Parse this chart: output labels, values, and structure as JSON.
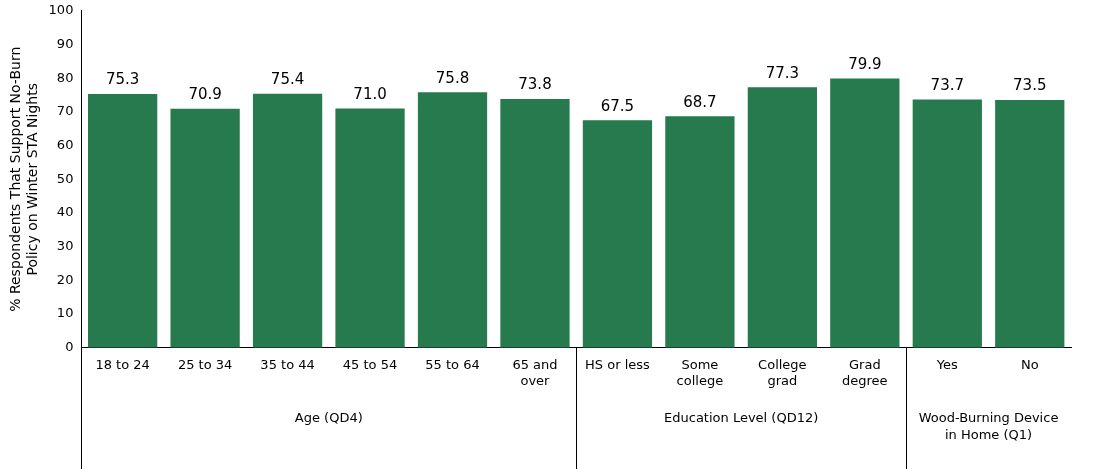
{
  "chart_data": {
    "type": "bar",
    "ylabel": "% Respondents That Support No-Burn Policy on Winter STA Nights",
    "categories": [
      "18 to 24",
      "25 to 34",
      "35 to 44",
      "45 to 54",
      "55 to 64",
      "65 and over",
      "HS or less",
      "Some college",
      "College grad",
      "Grad degree",
      "Yes",
      "No"
    ],
    "values": [
      75.3,
      70.9,
      75.4,
      71.0,
      75.8,
      73.8,
      67.5,
      68.7,
      77.3,
      79.9,
      73.7,
      73.5
    ],
    "value_labels": [
      "75.3",
      "70.9",
      "75.4",
      "71.0",
      "75.8",
      "73.8",
      "67.5",
      "68.7",
      "77.3",
      "79.9",
      "73.7",
      "73.5"
    ],
    "color": "#267a4e",
    "ylim": [
      0,
      100
    ],
    "yticks": [
      0,
      10,
      20,
      30,
      40,
      50,
      60,
      70,
      80,
      90,
      100
    ],
    "grid": false,
    "legend": false,
    "annotations": [
      "Age (QD4)",
      "Education Level (QD12)",
      "Wood-Burning Device in Home (Q1)"
    ]
  }
}
